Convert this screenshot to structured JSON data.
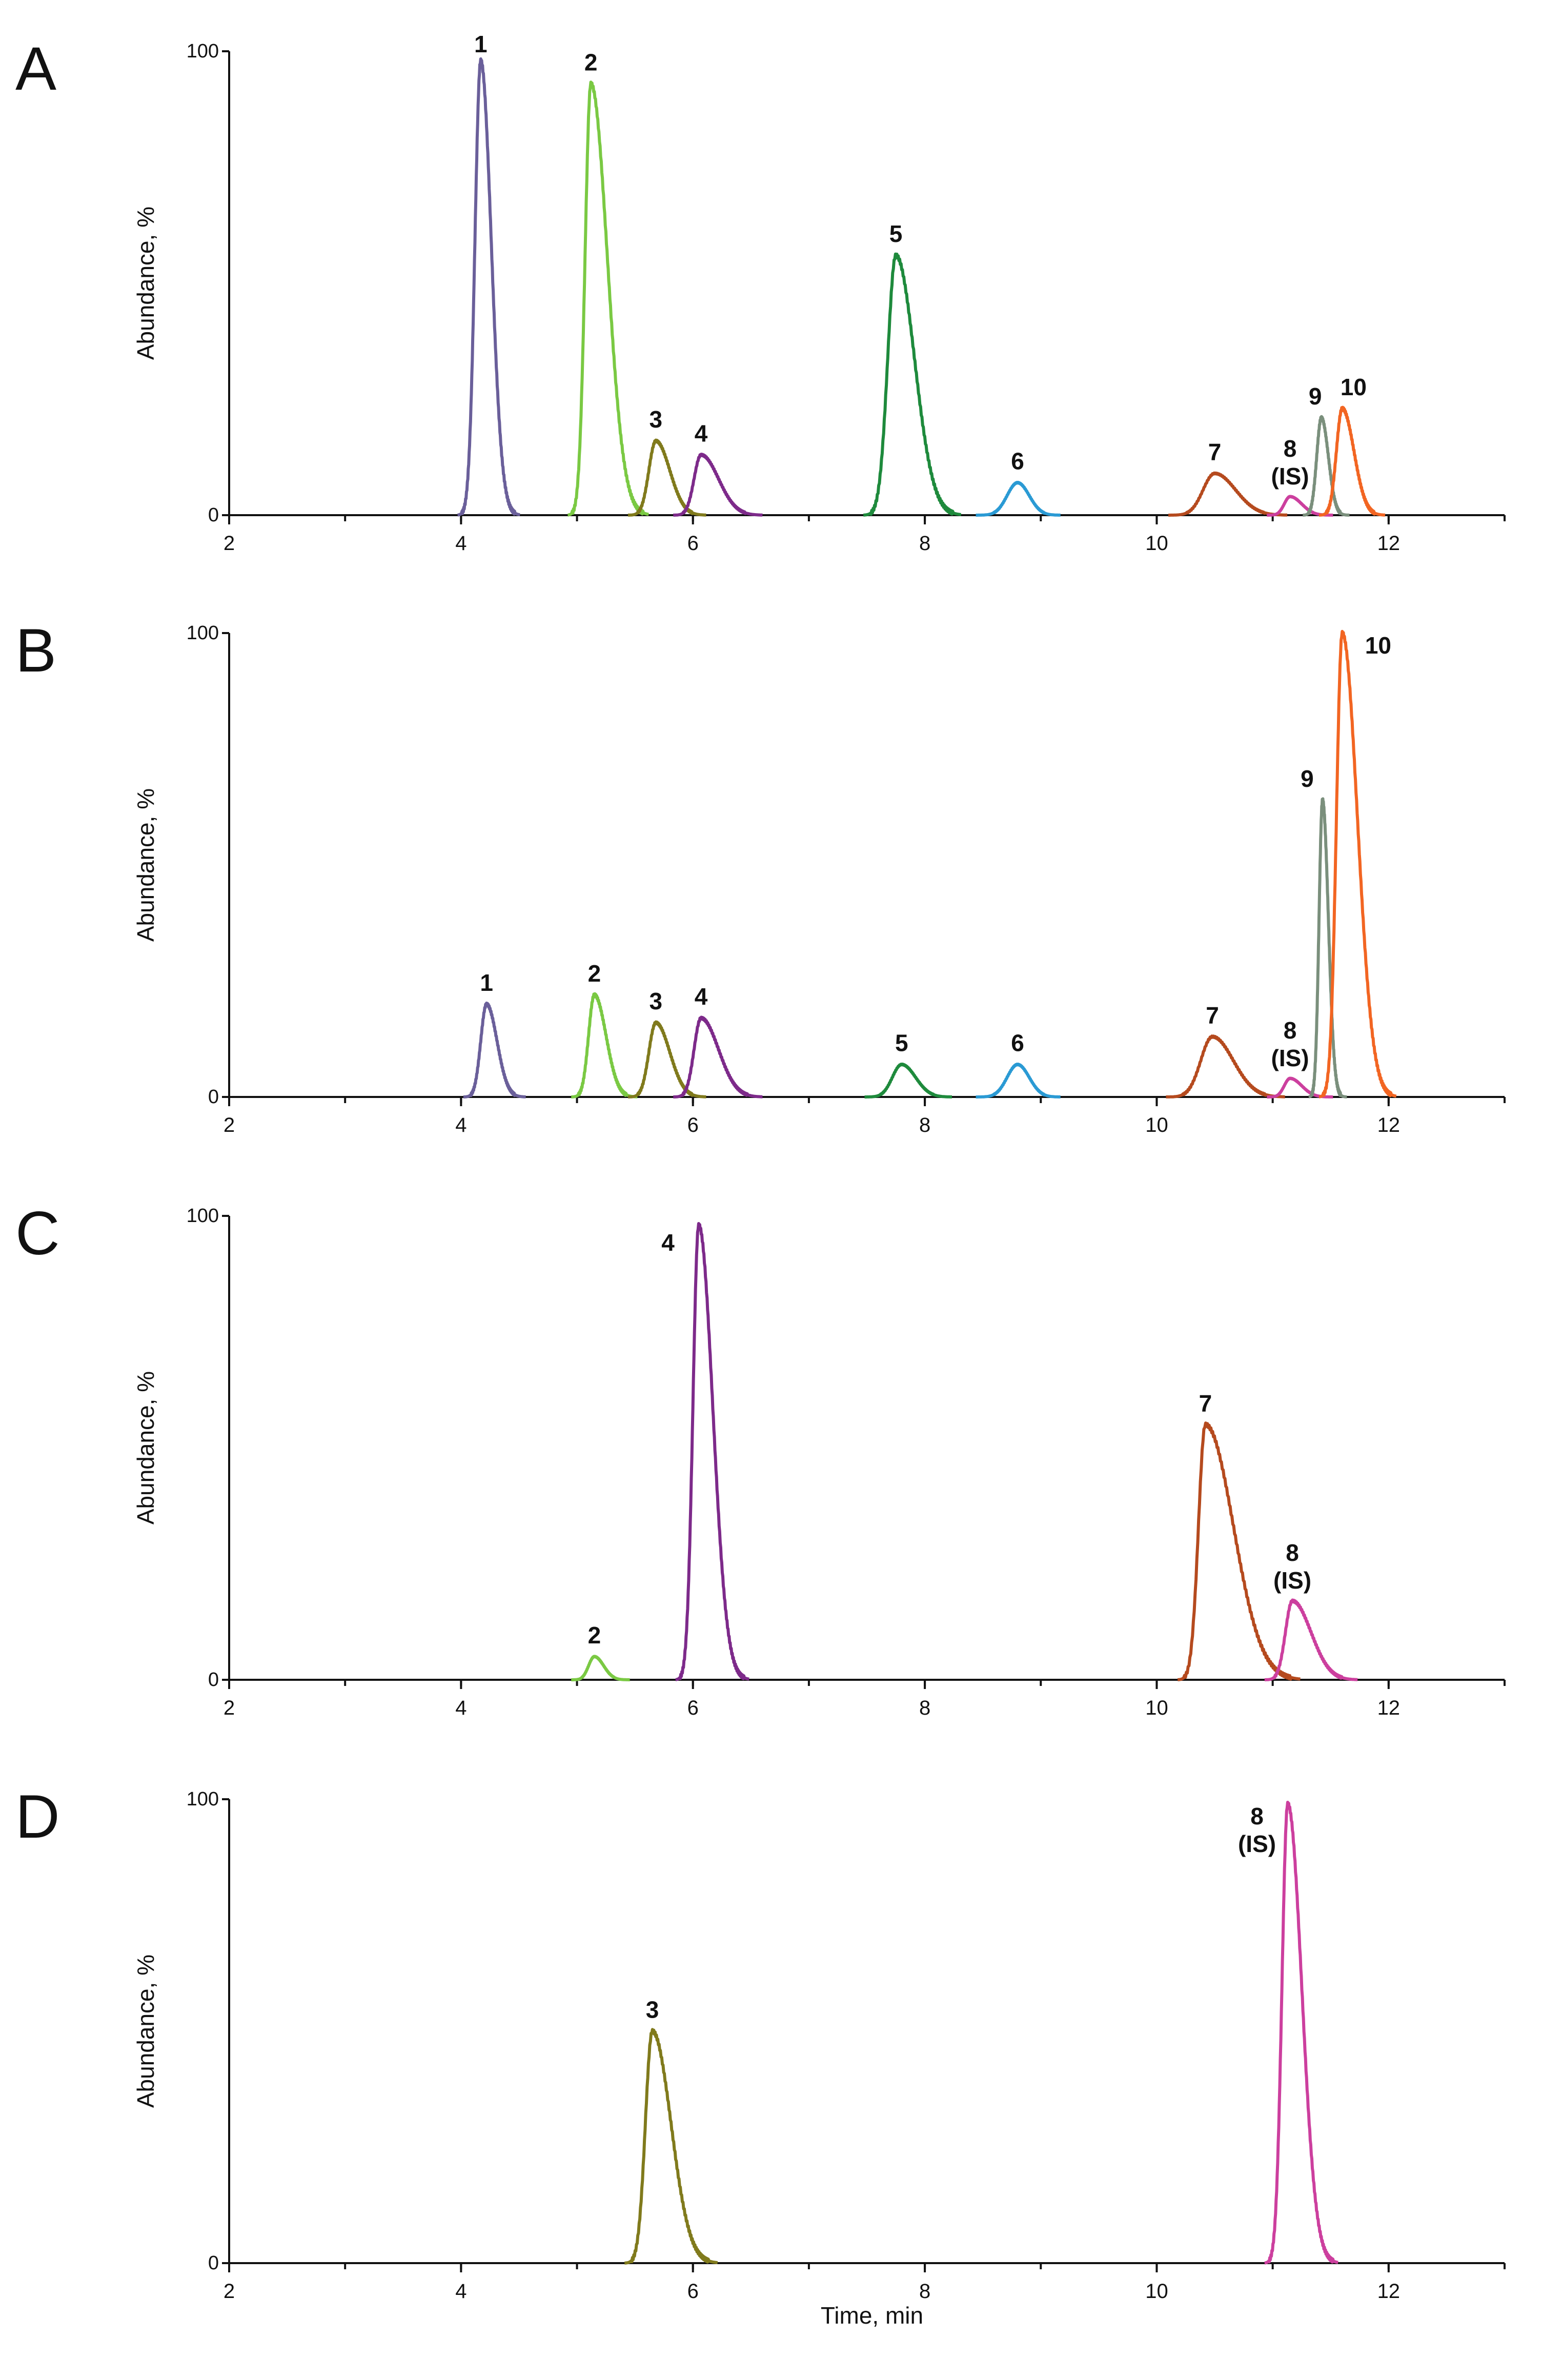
{
  "chart_data": {
    "type": "line",
    "shared_x_label": "Time, min",
    "panels": [
      {
        "panel_label": "A",
        "ylabel": "Abundance, %",
        "xlim": [
          2,
          13
        ],
        "ylim": [
          0,
          100
        ],
        "x_ticks": [
          "2",
          "4",
          "6",
          "8",
          "10",
          "12"
        ],
        "y_ticks": [
          "0",
          "100"
        ],
        "peaks": [
          {
            "id": "1",
            "label": "1",
            "color": "#6a5f9a",
            "rt": 4.17,
            "height": 98,
            "width": 0.05,
            "tail": 0.09
          },
          {
            "id": "2",
            "label": "2",
            "color": "#7ac943",
            "rt": 5.12,
            "height": 93,
            "width": 0.05,
            "tail": 0.14
          },
          {
            "id": "3",
            "label": "3",
            "color": "#807a1c",
            "rt": 5.68,
            "height": 16,
            "width": 0.06,
            "tail": 0.12
          },
          {
            "id": "4",
            "label": "4",
            "color": "#7d2a8a",
            "rt": 6.07,
            "height": 13,
            "width": 0.06,
            "tail": 0.15
          },
          {
            "id": "5",
            "label": "5",
            "color": "#1e8a3c",
            "rt": 7.75,
            "height": 56,
            "width": 0.07,
            "tail": 0.16
          },
          {
            "id": "6",
            "label": "6",
            "color": "#2a9ad4",
            "rt": 8.8,
            "height": 7,
            "width": 0.09,
            "tail": 0.1
          },
          {
            "id": "7",
            "label": "7",
            "color": "#b54a1e",
            "rt": 10.5,
            "height": 9,
            "width": 0.1,
            "tail": 0.18
          },
          {
            "id": "8",
            "label": "8",
            "label2": "(IS)",
            "color": "#cc3f9e",
            "rt": 11.15,
            "height": 4,
            "width": 0.05,
            "tail": 0.1
          },
          {
            "id": "9",
            "label": "9",
            "color": "#7a8f7c",
            "rt": 11.42,
            "height": 21,
            "width": 0.04,
            "tail": 0.06
          },
          {
            "id": "10",
            "label": "10",
            "color": "#f26522",
            "rt": 11.6,
            "height": 23,
            "width": 0.05,
            "tail": 0.1
          }
        ]
      },
      {
        "panel_label": "B",
        "ylabel": "Abundance, %",
        "xlim": [
          2,
          13
        ],
        "ylim": [
          0,
          100
        ],
        "x_ticks": [
          "2",
          "4",
          "6",
          "8",
          "10",
          "12"
        ],
        "y_ticks": [
          "0",
          "100"
        ],
        "peaks": [
          {
            "id": "1",
            "label": "1",
            "color": "#6a5f9a",
            "rt": 4.22,
            "height": 20,
            "width": 0.05,
            "tail": 0.09
          },
          {
            "id": "2",
            "label": "2",
            "color": "#7ac943",
            "rt": 5.15,
            "height": 22,
            "width": 0.05,
            "tail": 0.1
          },
          {
            "id": "3",
            "label": "3",
            "color": "#807a1c",
            "rt": 5.68,
            "height": 16,
            "width": 0.06,
            "tail": 0.12
          },
          {
            "id": "4",
            "label": "4",
            "color": "#7d2a8a",
            "rt": 6.07,
            "height": 17,
            "width": 0.06,
            "tail": 0.15
          },
          {
            "id": "5",
            "label": "5",
            "color": "#1e8a3c",
            "rt": 7.8,
            "height": 7,
            "width": 0.08,
            "tail": 0.12
          },
          {
            "id": "6",
            "label": "6",
            "color": "#2a9ad4",
            "rt": 8.8,
            "height": 7,
            "width": 0.09,
            "tail": 0.1
          },
          {
            "id": "7",
            "label": "7",
            "color": "#b54a1e",
            "rt": 10.48,
            "height": 13,
            "width": 0.1,
            "tail": 0.18
          },
          {
            "id": "8",
            "label": "8",
            "label2": "(IS)",
            "color": "#cc3f9e",
            "rt": 11.15,
            "height": 4,
            "width": 0.05,
            "tail": 0.1
          },
          {
            "id": "9",
            "label": "9",
            "color": "#7a8f7c",
            "rt": 11.43,
            "height": 64,
            "width": 0.03,
            "tail": 0.05
          },
          {
            "id": "10",
            "label": "10",
            "color": "#f26522",
            "rt": 11.6,
            "height": 100,
            "width": 0.05,
            "tail": 0.13
          }
        ]
      },
      {
        "panel_label": "C",
        "ylabel": "Abundance, %",
        "xlim": [
          2,
          13
        ],
        "ylim": [
          0,
          100
        ],
        "x_ticks": [
          "2",
          "4",
          "6",
          "8",
          "10",
          "12"
        ],
        "y_ticks": [
          "0",
          "100"
        ],
        "peaks": [
          {
            "id": "2",
            "label": "2",
            "color": "#7ac943",
            "rt": 5.15,
            "height": 5,
            "width": 0.05,
            "tail": 0.08
          },
          {
            "id": "4",
            "label": "4",
            "color": "#7d2a8a",
            "rt": 6.05,
            "height": 98,
            "width": 0.05,
            "tail": 0.12
          },
          {
            "id": "7",
            "label": "7",
            "color": "#b54a1e",
            "rt": 10.42,
            "height": 55,
            "width": 0.06,
            "tail": 0.24
          },
          {
            "id": "8",
            "label": "8",
            "label2": "(IS)",
            "color": "#cc3f9e",
            "rt": 11.17,
            "height": 17,
            "width": 0.06,
            "tail": 0.16
          }
        ]
      },
      {
        "panel_label": "D",
        "ylabel": "Abundance, %",
        "xlim": [
          2,
          13
        ],
        "ylim": [
          0,
          100
        ],
        "x_ticks": [
          "2",
          "4",
          "6",
          "8",
          "10",
          "12"
        ],
        "y_ticks": [
          "0",
          "100"
        ],
        "xlabel": "Time, min",
        "peaks": [
          {
            "id": "3",
            "label": "3",
            "color": "#807a1c",
            "rt": 5.65,
            "height": 50,
            "width": 0.06,
            "tail": 0.16
          },
          {
            "id": "8",
            "label": "8",
            "label2": "(IS)",
            "color": "#cc3f9e",
            "rt": 11.13,
            "height": 99,
            "width": 0.05,
            "tail": 0.12
          }
        ]
      }
    ]
  }
}
